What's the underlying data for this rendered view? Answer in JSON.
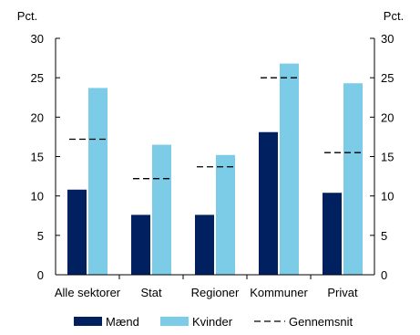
{
  "chart_data": {
    "type": "bar",
    "title": "",
    "unit_left": "Pct.",
    "unit_right": "Pct.",
    "categories": [
      "Alle sektorer",
      "Stat",
      "Regioner",
      "Kommuner",
      "Privat"
    ],
    "series": [
      {
        "name": "Mænd",
        "values": [
          10.8,
          7.6,
          7.6,
          18.1,
          10.4
        ],
        "color": "#002060"
      },
      {
        "name": "Kvinder",
        "values": [
          23.7,
          16.5,
          15.2,
          26.8,
          24.3
        ],
        "color": "#7CCCE8"
      }
    ],
    "average": {
      "name": "Gennemsnit",
      "values": [
        17.2,
        12.2,
        13.7,
        25.0,
        15.5
      ],
      "color": "#000000",
      "style": "dashed"
    },
    "ylim": [
      0,
      30
    ],
    "yticks": [
      0,
      5,
      10,
      15,
      20,
      25,
      30
    ],
    "grid": false,
    "legend_position": "bottom"
  }
}
